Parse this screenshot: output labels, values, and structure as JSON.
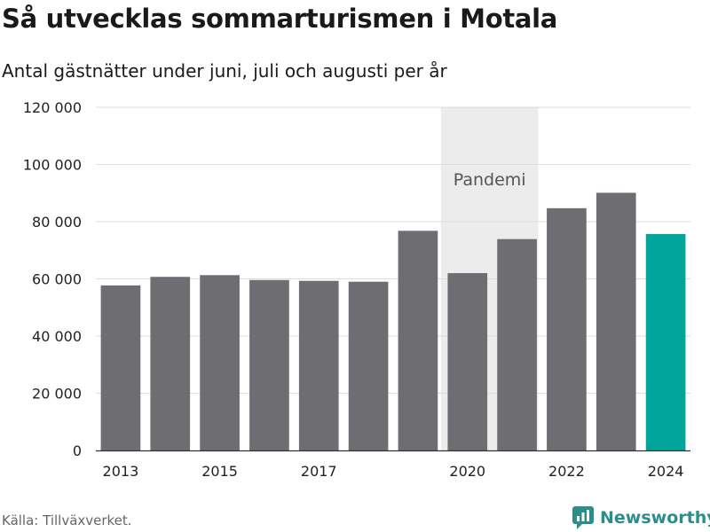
{
  "title": "Så utvecklas sommarturismen i Motala",
  "subtitle": "Antal gästnätter under juni, juli och augusti per år",
  "source": "Källa: Tillväxverket.",
  "brand": {
    "name": "Newsworthy",
    "color": "#2a8f8a",
    "icon": "newsworthy-logo-icon"
  },
  "colors": {
    "bar": "#6e6d72",
    "highlight": "#00a59a",
    "band": "#ececec",
    "grid": "#dddddd"
  },
  "chart_data": {
    "type": "bar",
    "categories": [
      "2013",
      "2014",
      "2015",
      "2016",
      "2017",
      "2018",
      "2019",
      "2020",
      "2021",
      "2022",
      "2023",
      "2024"
    ],
    "values": [
      57700,
      60700,
      61300,
      59600,
      59300,
      59000,
      76800,
      62000,
      73900,
      84700,
      90100,
      75700
    ],
    "highlight_index": 11,
    "x_tick_labels": [
      "2013",
      "2015",
      "2017",
      "2020",
      "2022",
      "2024"
    ],
    "y_ticks": [
      0,
      20000,
      40000,
      60000,
      80000,
      100000,
      120000
    ],
    "y_tick_labels": [
      "0",
      "20 000",
      "40 000",
      "60 000",
      "80 000",
      "100 000",
      "120 000"
    ],
    "ylim": [
      0,
      120000
    ],
    "grid": true,
    "annotation": {
      "label": "Pandemi",
      "from": "2020",
      "to": "2021"
    }
  }
}
